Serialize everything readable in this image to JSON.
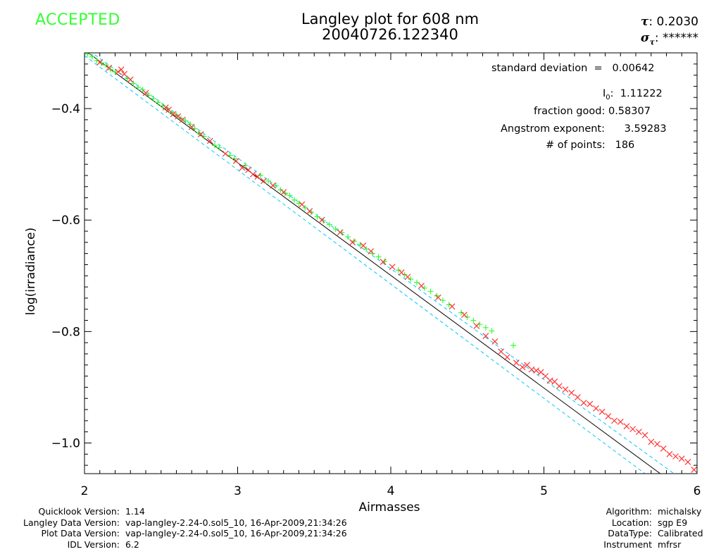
{
  "status": "ACCEPTED",
  "title_line1": "Langley plot for 608 nm",
  "title_line2": "20040726.122340",
  "tau": {
    "symbol": "τ",
    "value": "0.2030"
  },
  "sigma_tau": {
    "symbol": "σ",
    "sub": "τ",
    "value": "******"
  },
  "stats": {
    "std_dev_label": "standard deviation",
    "std_dev_eq": "=",
    "std_dev_value": "0.00642",
    "i0_label": "I",
    "i0_sub": "0",
    "i0_value": "1.11222",
    "fraction_label": "fraction good:",
    "fraction_value": "0.58307",
    "angstrom_label": "Angstrom exponent:",
    "angstrom_value": "3.59283",
    "points_label": "# of points:",
    "points_value": "186"
  },
  "footer_left": [
    {
      "label": "Quicklook Version:",
      "value": "1.14"
    },
    {
      "label": "Langley Data Version:",
      "value": "vap-langley-2.24-0.sol5_10, 16-Apr-2009,21:34:26"
    },
    {
      "label": "Plot Data Version:",
      "value": "vap-langley-2.24-0.sol5_10, 16-Apr-2009,21:34:26"
    },
    {
      "label": "IDL Version:",
      "value": "6.2"
    }
  ],
  "footer_right": [
    {
      "label": "Algorithm:",
      "value": "michalsky"
    },
    {
      "label": "Location:",
      "value": "sgp E9"
    },
    {
      "label": "DataType:",
      "value": "Calibrated"
    },
    {
      "label": "Instrument",
      "value": "mfrsr"
    }
  ],
  "colors": {
    "accepted": "#33ff33",
    "rejected": "#ff3333",
    "fit": "#000000",
    "bounds": "#00c8ff"
  },
  "chart_data": {
    "type": "scatter",
    "xlabel": "Airmasses",
    "ylabel": "log(irradiance)",
    "xlim": [
      2,
      6
    ],
    "ylim": [
      -1.055,
      -0.3
    ],
    "xticks": [
      2,
      3,
      4,
      5,
      6
    ],
    "xtick_labels": [
      "2",
      "3",
      "4",
      "5",
      "6"
    ],
    "yticks": [
      -0.4,
      -0.6,
      -0.8,
      -1.0
    ],
    "ytick_labels": [
      "−0.4",
      "−0.6",
      "−0.8",
      "−1.0"
    ],
    "fit_line": {
      "x": [
        2.0,
        5.76
      ],
      "y": [
        -0.295,
        -1.055
      ]
    },
    "bound_upper": {
      "x": [
        2.0,
        5.85
      ],
      "y": [
        -0.29,
        -1.055
      ]
    },
    "bound_lower": {
      "x": [
        2.0,
        5.66
      ],
      "y": [
        -0.305,
        -1.055
      ]
    },
    "series": [
      {
        "name": "accepted",
        "marker": "+",
        "x": [
          2.02,
          2.05,
          2.08,
          2.11,
          2.14,
          2.17,
          2.2,
          2.28,
          2.32,
          2.35,
          2.38,
          2.42,
          2.45,
          2.48,
          2.51,
          2.54,
          2.57,
          2.6,
          2.63,
          2.66,
          2.69,
          2.72,
          2.75,
          2.78,
          2.85,
          2.88,
          2.95,
          2.98,
          3.05,
          3.15,
          3.2,
          3.25,
          3.28,
          3.31,
          3.34,
          3.37,
          3.4,
          3.44,
          3.48,
          3.52,
          3.56,
          3.6,
          3.64,
          3.68,
          3.72,
          3.76,
          3.8,
          3.84,
          3.88,
          3.92,
          3.96,
          4.05,
          4.09,
          4.13,
          4.17,
          4.22,
          4.26,
          4.3,
          4.34,
          4.38,
          4.46,
          4.5,
          4.54,
          4.58,
          4.62,
          4.66,
          4.8
        ],
        "y": [
          -0.302,
          -0.307,
          -0.314,
          -0.318,
          -0.322,
          -0.33,
          -0.334,
          -0.346,
          -0.355,
          -0.362,
          -0.366,
          -0.376,
          -0.382,
          -0.389,
          -0.395,
          -0.4,
          -0.407,
          -0.412,
          -0.418,
          -0.422,
          -0.428,
          -0.436,
          -0.444,
          -0.45,
          -0.466,
          -0.47,
          -0.484,
          -0.49,
          -0.502,
          -0.52,
          -0.53,
          -0.538,
          -0.546,
          -0.552,
          -0.556,
          -0.564,
          -0.57,
          -0.578,
          -0.586,
          -0.594,
          -0.601,
          -0.608,
          -0.616,
          -0.622,
          -0.63,
          -0.638,
          -0.644,
          -0.652,
          -0.66,
          -0.666,
          -0.674,
          -0.69,
          -0.698,
          -0.706,
          -0.712,
          -0.722,
          -0.728,
          -0.736,
          -0.744,
          -0.752,
          -0.766,
          -0.774,
          -0.78,
          -0.787,
          -0.793,
          -0.799,
          -0.825
        ]
      },
      {
        "name": "rejected",
        "marker": "x",
        "x": [
          2.1,
          2.16,
          2.22,
          2.24,
          2.26,
          2.3,
          2.4,
          2.53,
          2.55,
          2.58,
          2.61,
          2.64,
          2.7,
          2.76,
          2.82,
          2.92,
          2.99,
          3.03,
          3.07,
          3.1,
          3.13,
          3.17,
          3.23,
          3.3,
          3.42,
          3.47,
          3.55,
          3.67,
          3.75,
          3.82,
          3.87,
          3.95,
          4.01,
          4.07,
          4.11,
          4.2,
          4.31,
          4.4,
          4.48,
          4.56,
          4.62,
          4.68,
          4.72,
          4.76,
          4.82,
          4.86,
          4.89,
          4.92,
          4.95,
          4.98,
          5.01,
          5.04,
          5.07,
          5.1,
          5.14,
          5.18,
          5.22,
          5.26,
          5.3,
          5.34,
          5.38,
          5.42,
          5.46,
          5.5,
          5.54,
          5.58,
          5.62,
          5.66,
          5.7,
          5.74,
          5.78,
          5.82,
          5.86,
          5.9,
          5.94,
          5.98
        ],
        "y": [
          -0.317,
          -0.327,
          -0.334,
          -0.33,
          -0.338,
          -0.348,
          -0.372,
          -0.398,
          -0.402,
          -0.41,
          -0.414,
          -0.42,
          -0.433,
          -0.446,
          -0.458,
          -0.481,
          -0.494,
          -0.506,
          -0.51,
          -0.518,
          -0.522,
          -0.53,
          -0.538,
          -0.55,
          -0.572,
          -0.584,
          -0.6,
          -0.622,
          -0.64,
          -0.646,
          -0.656,
          -0.675,
          -0.684,
          -0.694,
          -0.702,
          -0.718,
          -0.739,
          -0.755,
          -0.77,
          -0.79,
          -0.808,
          -0.818,
          -0.836,
          -0.846,
          -0.856,
          -0.864,
          -0.86,
          -0.868,
          -0.87,
          -0.873,
          -0.88,
          -0.888,
          -0.89,
          -0.898,
          -0.904,
          -0.91,
          -0.918,
          -0.928,
          -0.93,
          -0.938,
          -0.944,
          -0.952,
          -0.96,
          -0.962,
          -0.97,
          -0.975,
          -0.98,
          -0.986,
          -0.998,
          -1.002,
          -1.01,
          -1.02,
          -1.024,
          -1.028,
          -1.034,
          -1.048
        ]
      }
    ]
  }
}
